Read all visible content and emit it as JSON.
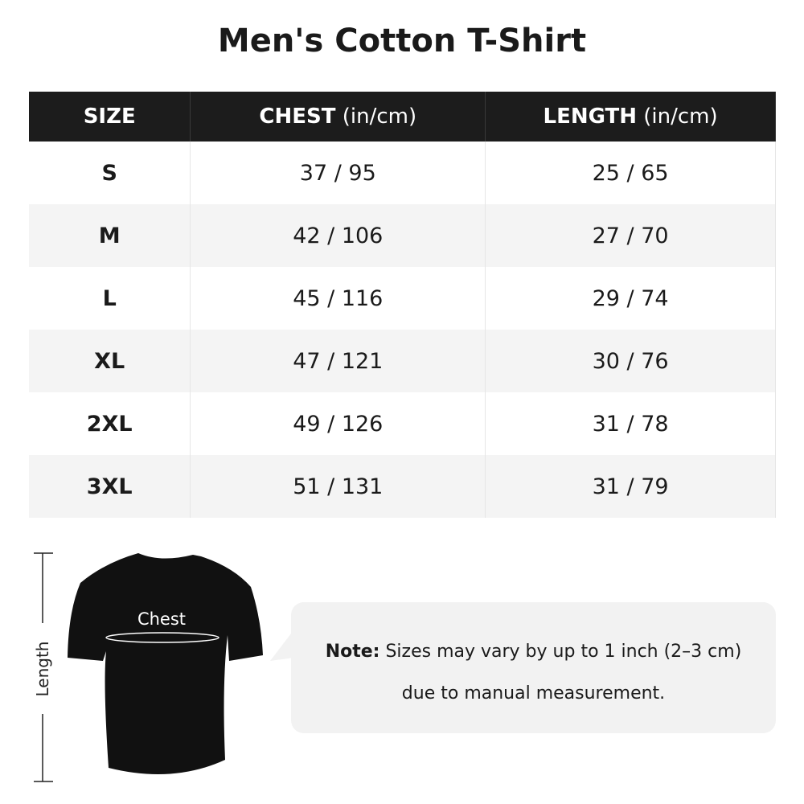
{
  "title": "Men's Cotton T-Shirt",
  "table": {
    "headers": [
      {
        "bold": "SIZE",
        "unit": ""
      },
      {
        "bold": "CHEST",
        "unit": " (in/cm)"
      },
      {
        "bold": "LENGTH",
        "unit": " (in/cm)"
      }
    ],
    "rows": [
      [
        "S",
        "37 / 95",
        "25 / 65"
      ],
      [
        "M",
        "42 / 106",
        "27 / 70"
      ],
      [
        "L",
        "45 / 116",
        "29 / 74"
      ],
      [
        "XL",
        "47 / 121",
        "30 / 76"
      ],
      [
        "2XL",
        "49 / 126",
        "31 / 78"
      ],
      [
        "3XL",
        "51 / 131",
        "31 / 79"
      ]
    ]
  },
  "diagram": {
    "chest_label": "Chest",
    "length_label": "Length"
  },
  "note": {
    "label": "Note:",
    "line1": " Sizes may vary by up to 1 inch (2–3 cm)",
    "line2": "due to manual measurement."
  }
}
